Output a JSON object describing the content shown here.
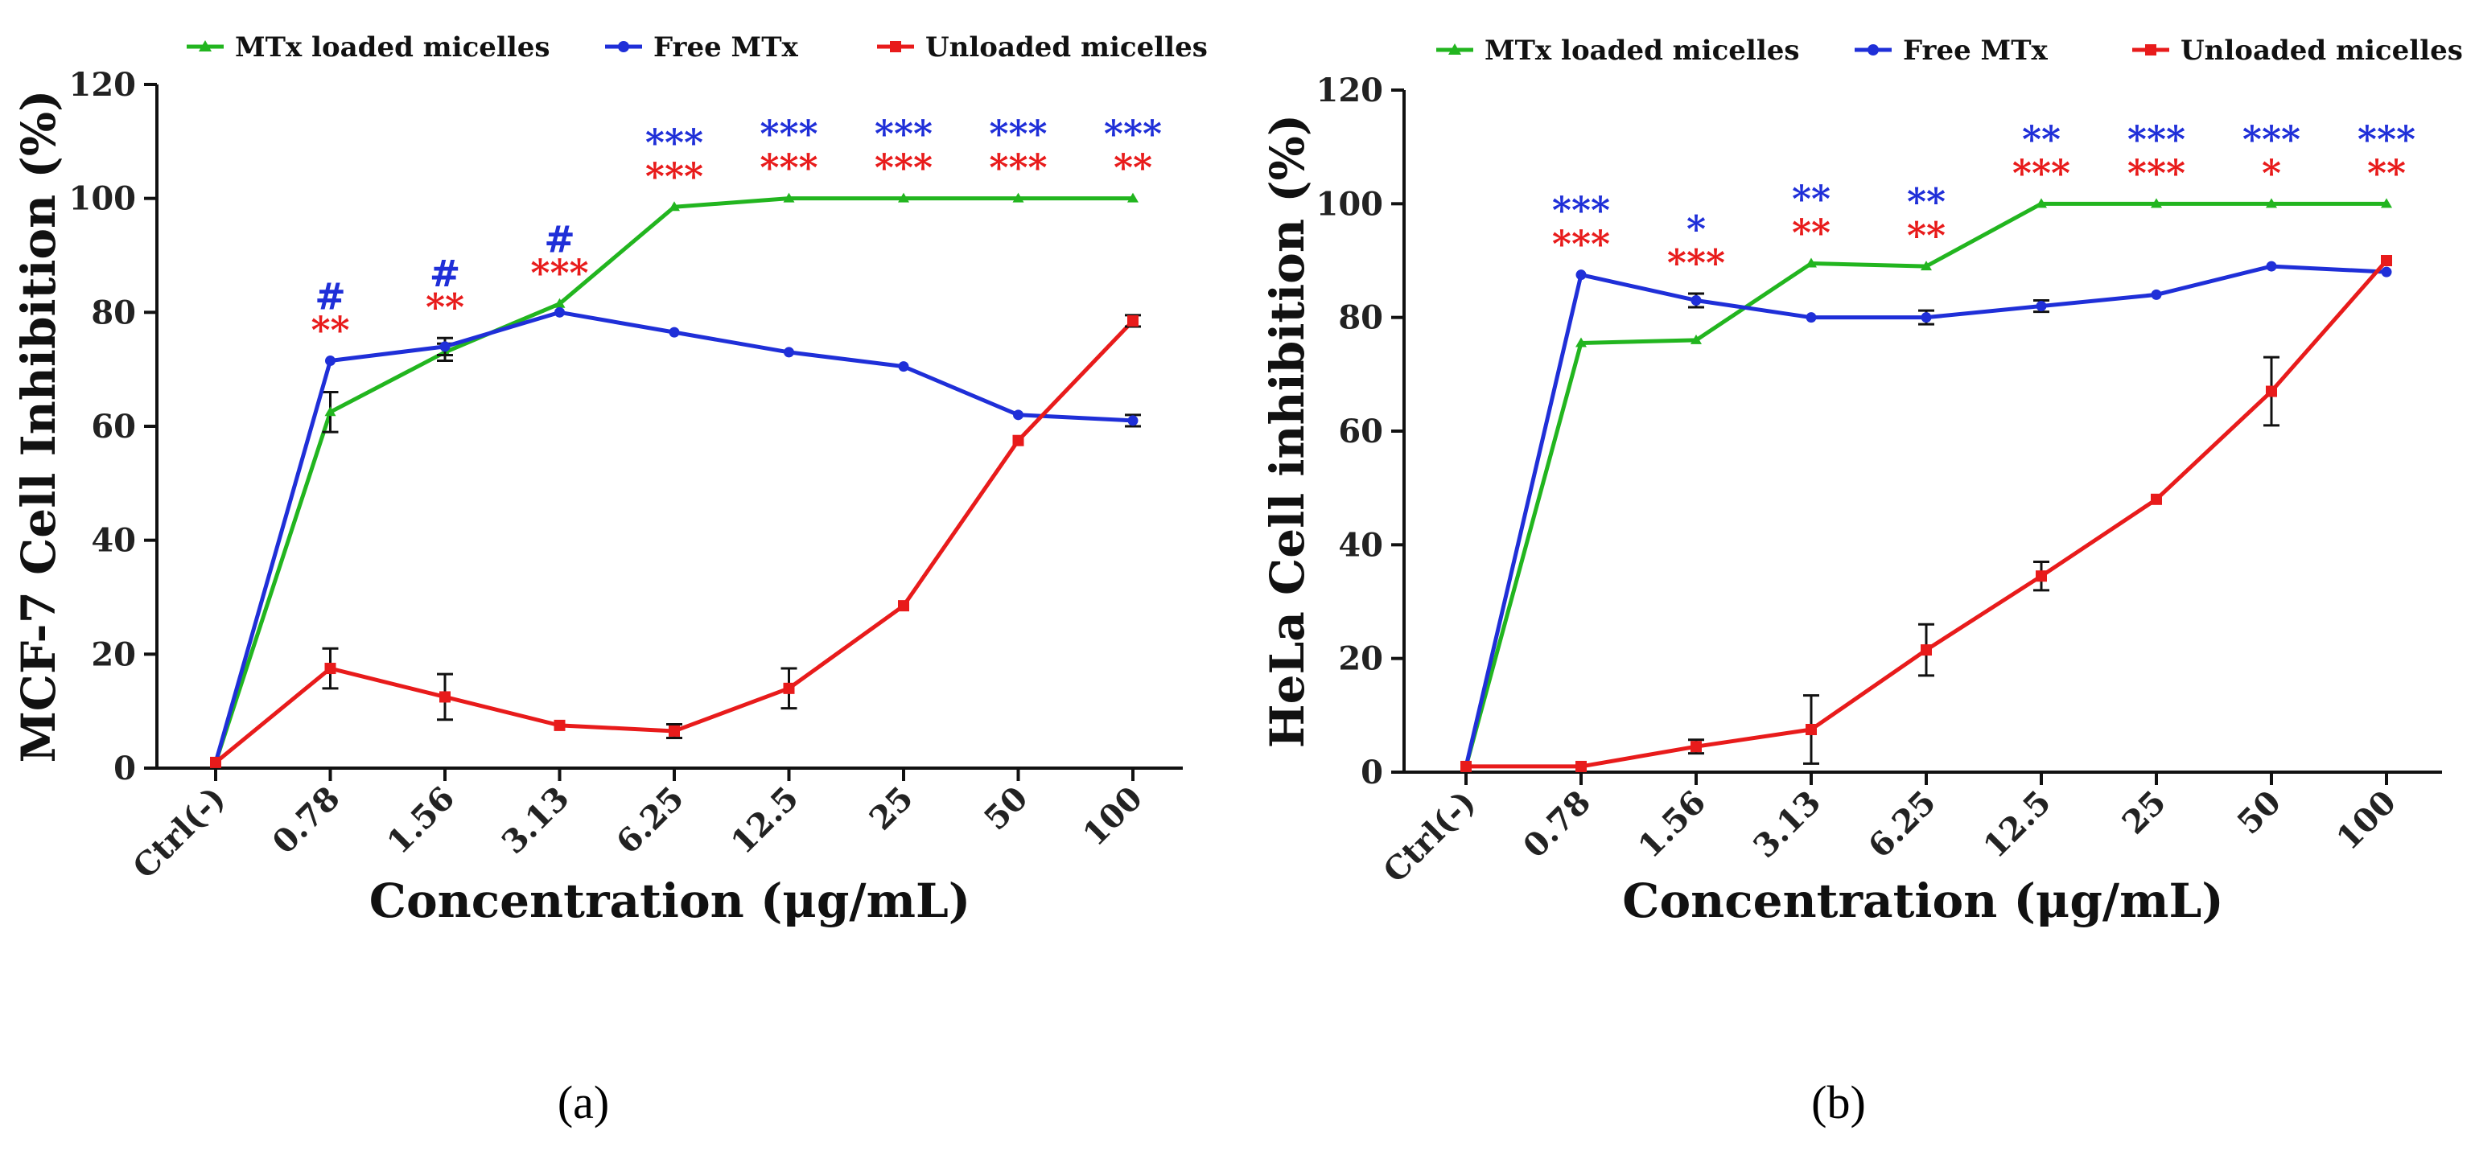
{
  "colors": {
    "MTx loaded micelles": "#22b51f",
    "Free MTx": "#1f2fd8",
    "Unloaded micelles": "#e81b1b",
    "axis": "#111111",
    "error_bar": "#111111"
  },
  "chart_data": [
    {
      "panel": "(a)",
      "type": "line",
      "xlabel": "Concentration (μg/mL)",
      "ylabel": "MCF-7 Cell Inhibition (%)",
      "ylim": [
        0,
        120
      ],
      "yticks": [
        "0",
        "20",
        "40",
        "60",
        "80",
        "100",
        "120"
      ],
      "categories": [
        "Ctrl(-)",
        "0.78",
        "1.56",
        "3.13",
        "6.25",
        "12.5",
        "25",
        "50",
        "100"
      ],
      "legend": [
        "MTx loaded micelles",
        "Free MTx",
        "Unloaded micelles"
      ],
      "series": [
        {
          "name": "MTx loaded micelles",
          "marker": "triangle",
          "values": [
            1,
            62.5,
            73,
            81.5,
            98.5,
            100,
            100,
            100,
            100
          ],
          "errors": [
            0,
            3.5,
            1.5,
            0,
            0,
            0,
            0,
            0,
            0
          ]
        },
        {
          "name": "Free MTx",
          "marker": "circle",
          "values": [
            1,
            71.5,
            74,
            80,
            76.5,
            73,
            70.5,
            62,
            61
          ],
          "errors": [
            0,
            0,
            1.5,
            0,
            0,
            0,
            0,
            0,
            1
          ]
        },
        {
          "name": "Unloaded micelles",
          "marker": "square",
          "values": [
            1,
            17.5,
            12.5,
            7.5,
            6.5,
            14,
            28.5,
            57.5,
            78.5
          ],
          "errors": [
            0,
            3.5,
            4,
            0,
            1.2,
            3.5,
            0,
            0,
            1
          ]
        }
      ],
      "annotations": [
        {
          "index": 1,
          "blue": "#",
          "red": "**"
        },
        {
          "index": 2,
          "blue": "#",
          "red": "**"
        },
        {
          "index": 3,
          "blue": "#",
          "red": "***"
        },
        {
          "index": 4,
          "blue": "***",
          "red": "***"
        },
        {
          "index": 5,
          "blue": "***",
          "red": "***"
        },
        {
          "index": 6,
          "blue": "***",
          "red": "***"
        },
        {
          "index": 7,
          "blue": "***",
          "red": "***"
        },
        {
          "index": 8,
          "blue": "***",
          "red": "**"
        }
      ]
    },
    {
      "panel": "(b)",
      "type": "line",
      "xlabel": "Concentration (μg/mL)",
      "ylabel": "HeLa Cell inhibition (%)",
      "ylim": [
        0,
        120
      ],
      "yticks": [
        "0",
        "20",
        "40",
        "60",
        "80",
        "100",
        "120"
      ],
      "categories": [
        "Ctrl(-)",
        "0.78",
        "1.56",
        "3.13",
        "6.25",
        "12.5",
        "25",
        "50",
        "100"
      ],
      "legend": [
        "MTx loaded micelles",
        "Free MTx",
        "Unloaded micelles"
      ],
      "series": [
        {
          "name": "MTx loaded micelles",
          "marker": "triangle",
          "values": [
            1,
            75.5,
            76,
            89.5,
            89,
            100,
            100,
            100,
            100
          ],
          "errors": [
            0,
            0,
            0,
            0,
            0,
            0,
            0,
            0,
            0
          ]
        },
        {
          "name": "Free MTx",
          "marker": "circle",
          "values": [
            1,
            87.5,
            83,
            80,
            80,
            82,
            84,
            89,
            88
          ],
          "errors": [
            0,
            0,
            1.2,
            0,
            1.2,
            1,
            0,
            0,
            0
          ]
        },
        {
          "name": "Unloaded micelles",
          "marker": "square",
          "values": [
            1,
            1,
            4.5,
            7.5,
            21.5,
            34.5,
            48,
            67,
            90
          ],
          "errors": [
            0,
            0,
            1.2,
            6,
            4.5,
            2.5,
            0,
            6,
            0
          ]
        }
      ],
      "annotations": [
        {
          "index": 1,
          "blue": "***",
          "red": "***"
        },
        {
          "index": 2,
          "blue": "*",
          "red": "***"
        },
        {
          "index": 3,
          "blue": "**",
          "red": "**"
        },
        {
          "index": 4,
          "blue": "**",
          "red": "**"
        },
        {
          "index": 5,
          "blue": "**",
          "red": "***"
        },
        {
          "index": 6,
          "blue": "***",
          "red": "***"
        },
        {
          "index": 7,
          "blue": "***",
          "red": "*"
        },
        {
          "index": 8,
          "blue": "***",
          "red": "**"
        }
      ]
    }
  ]
}
